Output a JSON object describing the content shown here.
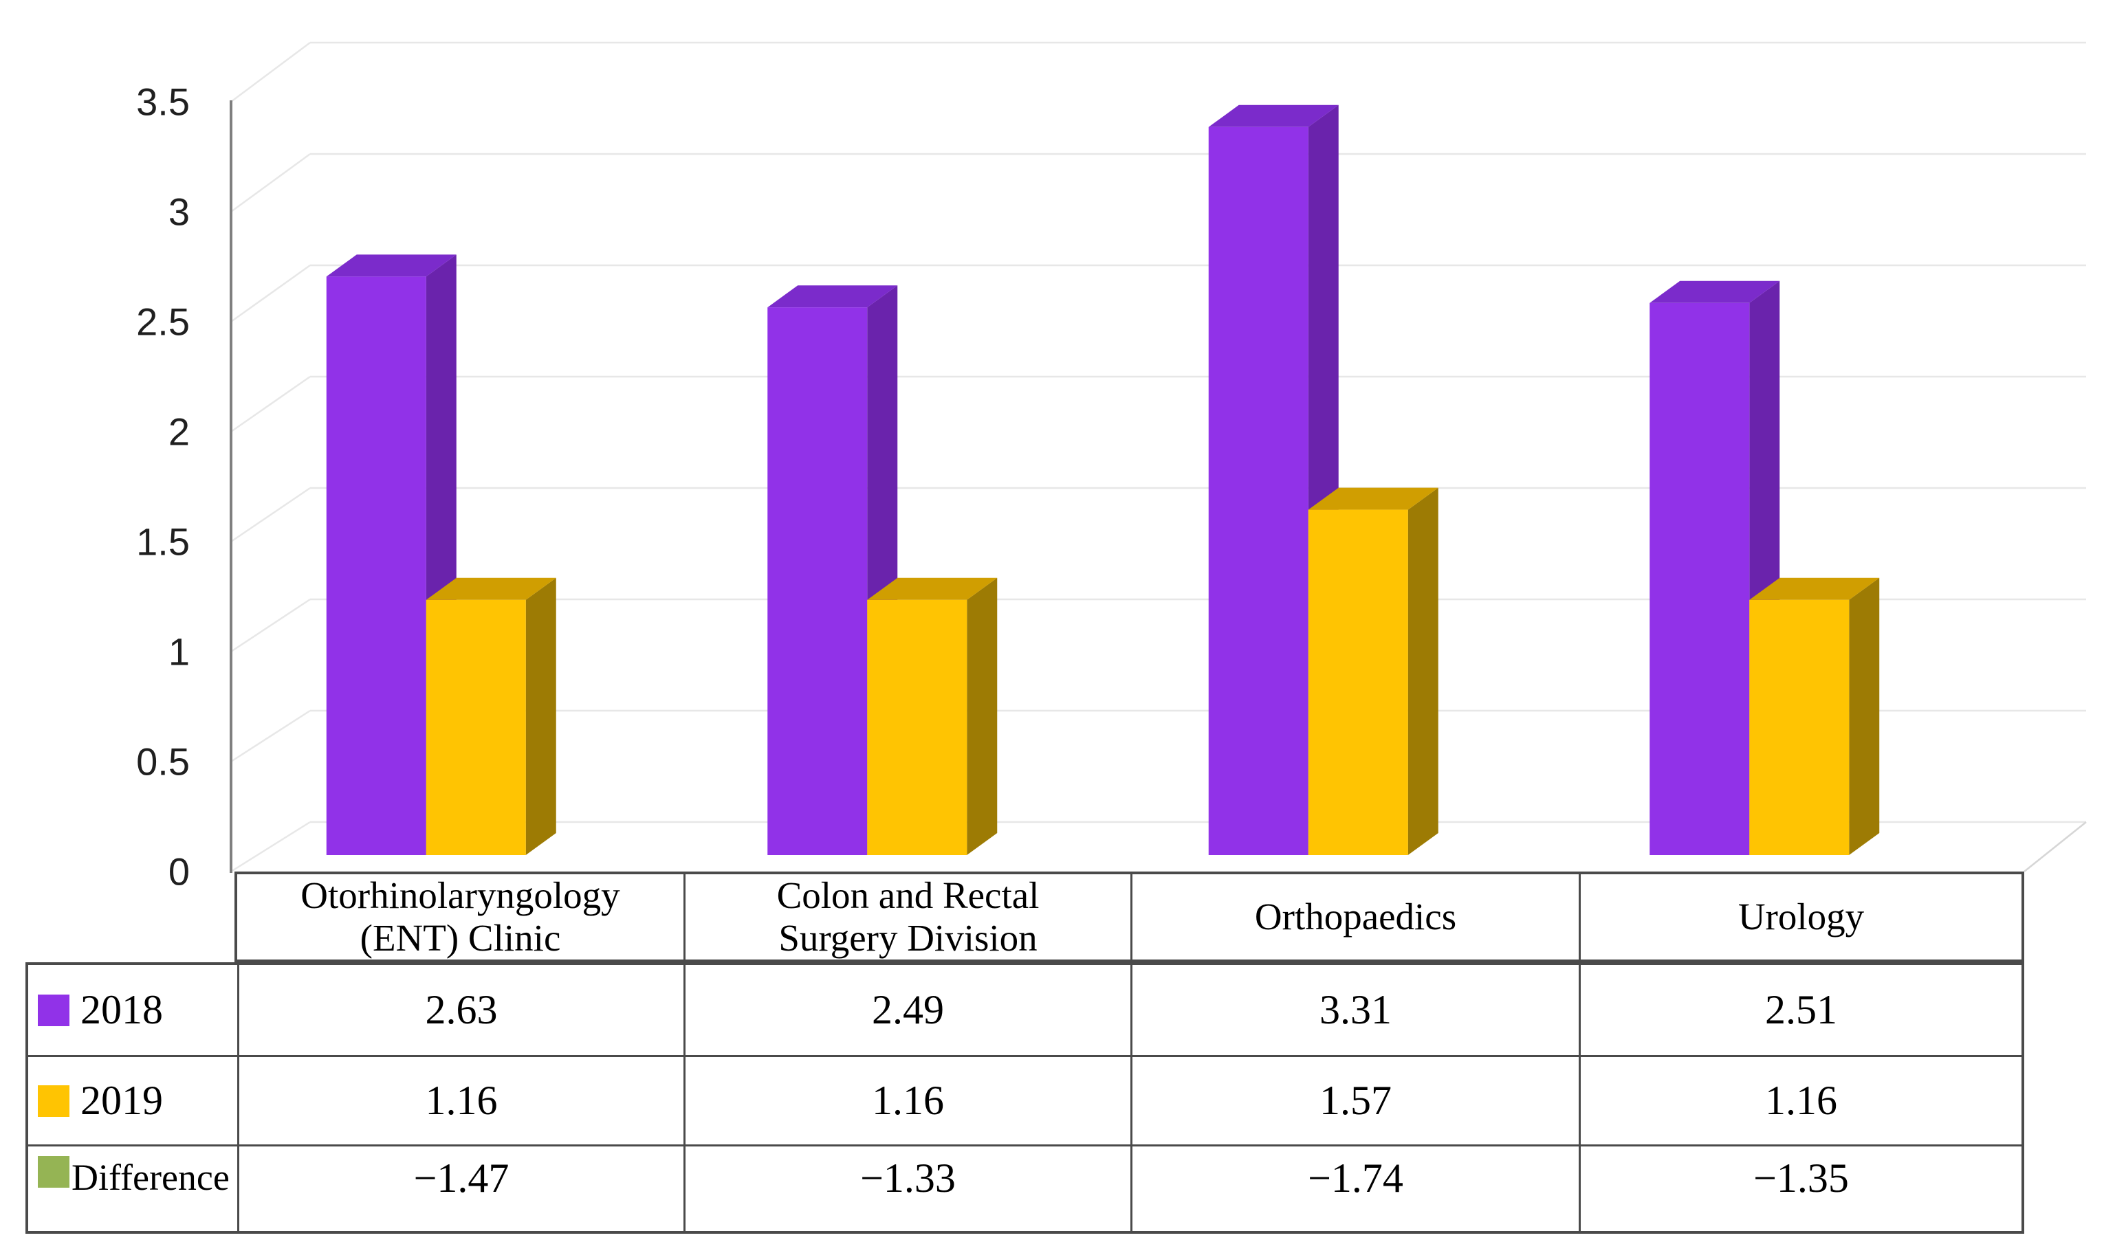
{
  "chart_data": {
    "type": "bar",
    "subtype": "3d-clustered-column",
    "title": "",
    "xlabel": "",
    "ylabel": "",
    "categories": [
      "Otorhinolaryngology (ENT) Clinic",
      "Colon and Rectal Surgery Division",
      "Orthopaedics",
      "Urology"
    ],
    "series": [
      {
        "name": "2018",
        "values": [
          2.63,
          2.49,
          3.31,
          2.51
        ],
        "color": "#9132E8",
        "plotted": true
      },
      {
        "name": "2019",
        "values": [
          1.16,
          1.16,
          1.57,
          1.16
        ],
        "color": "#FFC402",
        "plotted": true
      },
      {
        "name": "Difference",
        "values": [
          -1.47,
          -1.33,
          -1.74,
          -1.35
        ],
        "color": "#95B454",
        "plotted": false
      }
    ],
    "ylim": [
      0,
      3.5
    ],
    "yticks": [
      "0",
      "0.5",
      "1",
      "1.5",
      "2",
      "2.5",
      "3",
      "3.5"
    ],
    "grid": true,
    "legend_position": "table-left"
  },
  "table": {
    "rows": [
      {
        "label": "2018",
        "swatch": "#9132E8",
        "values": [
          "2.63",
          "2.49",
          "3.31",
          "2.51"
        ]
      },
      {
        "label": "2019",
        "swatch": "#FFC402",
        "values": [
          "1.16",
          "1.16",
          "1.57",
          "1.16"
        ]
      },
      {
        "label": "Difference",
        "swatch": "#95B454",
        "values": [
          "−1.47",
          "−1.33",
          "−1.74",
          "−1.35"
        ]
      }
    ]
  },
  "colors": {
    "bar_2018": {
      "front": "#9132E8",
      "top": "#7B2BCB",
      "side": "#6A23AC"
    },
    "bar_2019": {
      "front": "#FFC402",
      "top": "#D09E01",
      "side": "#9D7B04"
    },
    "gridline": "#E7E7E7",
    "floor_edge": "#D6D6D6",
    "axis_line": "#7F7F7F",
    "tick_text": "#1f1f1f",
    "table_border": "#4a4a4a"
  }
}
